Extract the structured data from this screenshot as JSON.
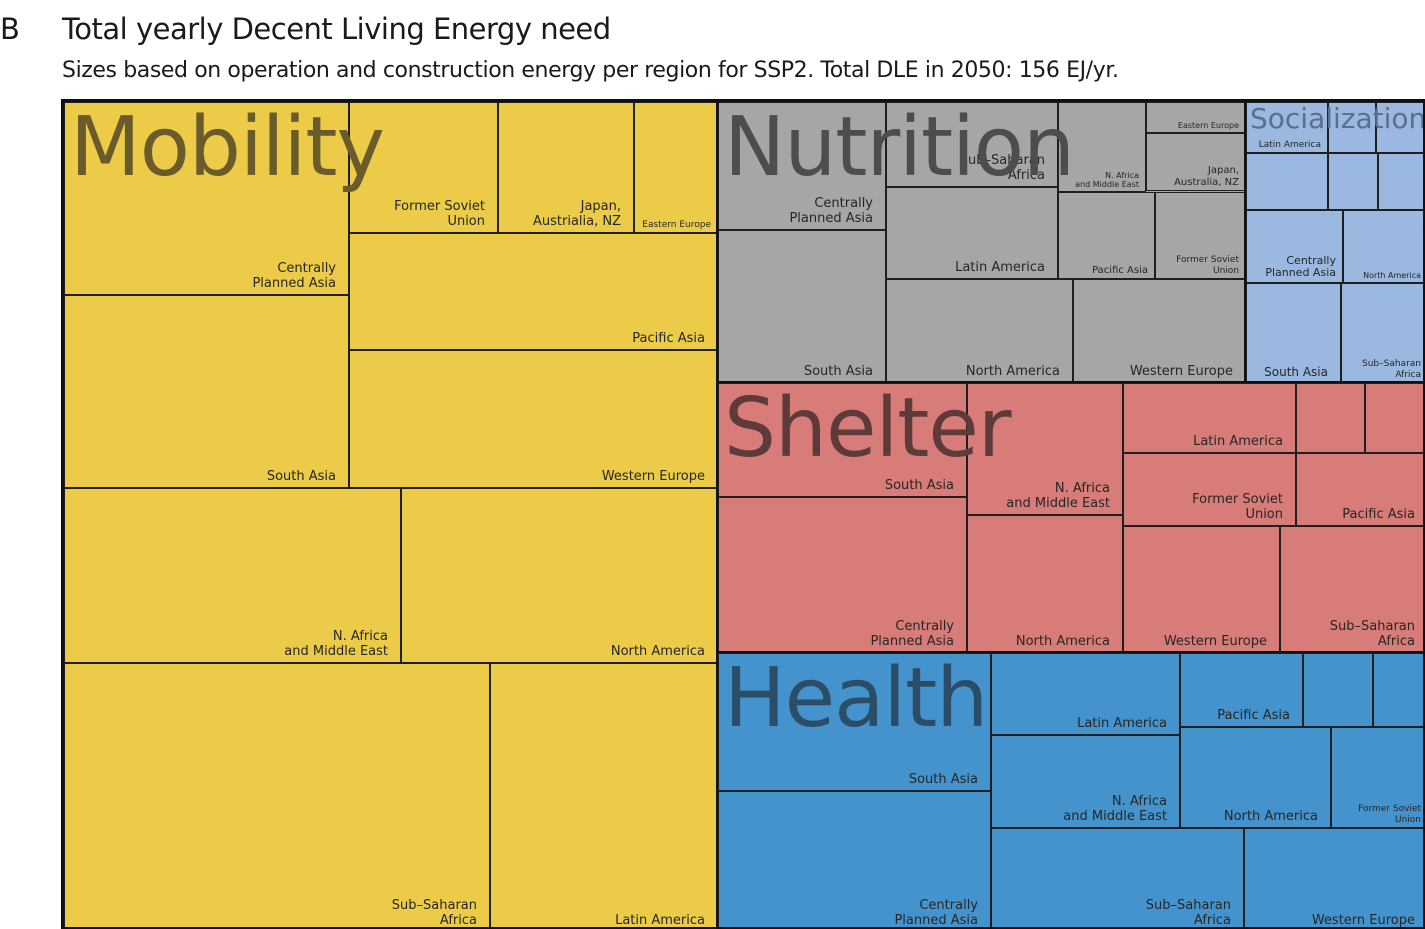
{
  "panel_letter": "B",
  "title": "Total yearly Decent Living Energy need",
  "subtitle": "Sizes based on operation and construction energy per region for SSP2. Total DLE in 2050: 156 EJ/yr.",
  "chart_data": {
    "type": "treemap",
    "title": "Total yearly Decent Living Energy need",
    "subtitle": "Sizes based on operation and construction energy per region for SSP2. Total DLE in 2050: 156 EJ/yr.",
    "total": 156,
    "unit": "EJ/yr",
    "groups": [
      {
        "name": "Mobility",
        "color": "#ebcb48",
        "label_color": "#6b5a2a",
        "value": 75.2,
        "tiles": [
          {
            "name": "Sub–Saharan\nAfrica",
            "value": 10.5
          },
          {
            "name": "Latin America",
            "value": 5.6
          },
          {
            "name": "N. Africa\nand Middle East",
            "value": 7.0
          },
          {
            "name": "North America",
            "value": 6.0
          },
          {
            "name": "South Asia",
            "value": 5.1
          },
          {
            "name": "Centrally\nPlanned Asia",
            "value": 5.1
          },
          {
            "name": "Western Europe",
            "value": 5.1
          },
          {
            "name": "Pacific Asia",
            "value": 3.6
          },
          {
            "name": "Former Soviet\nUnion",
            "value": 1.7
          },
          {
            "name": "Japan,\nAustrialia, NZ",
            "value": 1.6
          },
          {
            "name": "Eastern Europe",
            "value": 1.0
          }
        ]
      },
      {
        "name": "Nutrition",
        "color": "#a6a6a6",
        "label_color": "#4d4d4d",
        "value": 24.0,
        "tiles": [
          {
            "name": "South Asia",
            "value": 1.9
          },
          {
            "name": "Centrally\nPlanned Asia",
            "value": 1.2
          },
          {
            "name": "Sub–Saharan\nAfrica",
            "value": 1.2
          },
          {
            "name": "Latin America",
            "value": 1.5
          },
          {
            "name": "North America",
            "value": 1.6
          },
          {
            "name": "Western Europe",
            "value": 1.6
          },
          {
            "name": "N. Africa\nand Middle East",
            "value": 0.7
          },
          {
            "name": "Eastern Europe",
            "value": 0.3
          },
          {
            "name": "Japan,\nAustralia, NZ",
            "value": 0.5
          },
          {
            "name": "Pacific Asia",
            "value": 0.9
          },
          {
            "name": "Former Soviet\nUnion",
            "value": 0.8
          }
        ]
      },
      {
        "name": "Socialization",
        "color": "#9ab8e0",
        "label_color": "#5a6f8f",
        "value": 11.0,
        "tiles": [
          {
            "name": "Latin America",
            "value": 0.6
          },
          {
            "name": "Centrally\nPlanned Asia",
            "value": 0.6
          },
          {
            "name": "North America",
            "value": 0.6
          },
          {
            "name": "South Asia",
            "value": 0.7
          },
          {
            "name": "Sub–Saharan\nAfrica",
            "value": 0.7
          }
        ]
      },
      {
        "name": "Shelter",
        "color": "#d77c78",
        "label_color": "#5e3b3a",
        "value": 21.0,
        "tiles": [
          {
            "name": "South Asia",
            "value": 2.0
          },
          {
            "name": "Centrally\nPlanned Asia",
            "value": 2.5
          },
          {
            "name": "N. Africa\nand Middle East",
            "value": 1.3
          },
          {
            "name": "North America",
            "value": 1.3
          },
          {
            "name": "Latin America",
            "value": 0.8
          },
          {
            "name": "Former Soviet\nUnion",
            "value": 0.8
          },
          {
            "name": "Pacific Asia",
            "value": 0.5
          },
          {
            "name": "Western Europe",
            "value": 1.0
          },
          {
            "name": "Sub–Saharan\nAfrica",
            "value": 1.0
          }
        ]
      },
      {
        "name": "Health",
        "color": "#4593cd",
        "label_color": "#2b4d68",
        "value": 24.8,
        "tiles": [
          {
            "name": "South Asia",
            "value": 2.2
          },
          {
            "name": "Centrally\nPlanned Asia",
            "value": 2.6
          },
          {
            "name": "Latin America",
            "value": 0.9
          },
          {
            "name": "N. Africa\nand Middle East",
            "value": 1.1
          },
          {
            "name": "Pacific Asia",
            "value": 0.5
          },
          {
            "name": "North America",
            "value": 0.8
          },
          {
            "name": "Former Soviet\nUnion",
            "value": 0.4
          },
          {
            "name": "Sub–Saharan\nAfrica",
            "value": 1.2
          },
          {
            "name": "Western Europe",
            "value": 0.9
          }
        ]
      }
    ]
  }
}
